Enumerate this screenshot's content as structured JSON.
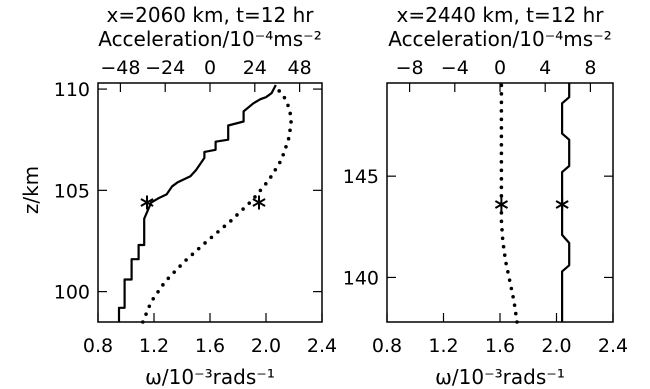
{
  "chart_data": [
    {
      "type": "line",
      "title": "x=2060 km, t=12 hr",
      "top_axis": {
        "label": "Acceleration/10⁻⁴ms⁻²",
        "range": [
          -60,
          60
        ],
        "ticks": [
          "-48",
          "-24",
          "0",
          "24",
          "48"
        ],
        "tick_values": [
          -48,
          -24,
          0,
          24,
          48
        ]
      },
      "bottom_axis": {
        "label": "ω/10⁻³rads⁻¹",
        "range": [
          0.8,
          2.4
        ],
        "ticks": [
          "0.8",
          "1.2",
          "1.6",
          "2.0",
          "2.4"
        ],
        "tick_values": [
          0.8,
          1.2,
          1.6,
          2.0,
          2.4
        ]
      },
      "y_axis": {
        "label": "z/km",
        "range": [
          98.5,
          110.3
        ],
        "ticks": [
          "100",
          "105",
          "110"
        ],
        "tick_values": [
          100,
          105,
          110
        ]
      },
      "series": [
        {
          "style": "solid",
          "axis": "bottom",
          "x": [
            0.95,
            0.95,
            0.99,
            0.99,
            1.04,
            1.04,
            1.09,
            1.09,
            1.13,
            1.13,
            1.18,
            1.23,
            1.29,
            1.33,
            1.37,
            1.46,
            1.5,
            1.56,
            1.56,
            1.64,
            1.64,
            1.73,
            1.73,
            1.84,
            1.84,
            1.91,
            1.96,
            2.0,
            2.04,
            2.07
          ],
          "y": [
            98.5,
            99.2,
            99.2,
            100.6,
            100.6,
            101.6,
            101.6,
            102.3,
            102.3,
            103.6,
            104.4,
            104.6,
            104.8,
            105.2,
            105.4,
            105.7,
            106.0,
            106.6,
            106.9,
            107.0,
            107.4,
            107.5,
            108.2,
            108.4,
            108.9,
            109.3,
            109.5,
            109.6,
            109.8,
            110.2
          ]
        },
        {
          "style": "dotted",
          "axis": "bottom",
          "x": [
            1.12,
            1.18,
            1.28,
            1.42,
            1.58,
            1.75,
            1.9,
            2.02,
            2.11,
            2.16,
            2.18,
            2.17,
            2.13,
            2.06
          ],
          "y": [
            98.5,
            99.5,
            100.5,
            101.5,
            102.5,
            103.5,
            104.5,
            105.5,
            106.5,
            107.5,
            108.3,
            109.0,
            109.6,
            110.2
          ]
        }
      ],
      "markers": [
        {
          "symbol": "asterisk",
          "x": 1.15,
          "y": 104.4
        },
        {
          "symbol": "asterisk",
          "x": 1.95,
          "y": 104.4
        }
      ]
    },
    {
      "type": "line",
      "title": "x=2440 km, t=12 hr",
      "top_axis": {
        "label": "Acceleration/10⁻⁴ms⁻²",
        "range": [
          -10,
          10
        ],
        "ticks": [
          "-8",
          "-4",
          "0",
          "4",
          "8"
        ],
        "tick_values": [
          -8,
          -4,
          0,
          4,
          8
        ]
      },
      "bottom_axis": {
        "label": "ω/10⁻³rads⁻¹",
        "range": [
          0.8,
          2.4
        ],
        "ticks": [
          "0.8",
          "1.2",
          "1.6",
          "2.0",
          "2.4"
        ],
        "tick_values": [
          0.8,
          1.2,
          1.6,
          2.0,
          2.4
        ]
      },
      "y_axis": {
        "label": "",
        "range": [
          137.8,
          149.6
        ],
        "ticks": [
          "140",
          "145"
        ],
        "tick_values": [
          140,
          145
        ]
      },
      "series": [
        {
          "style": "solid",
          "axis": "bottom",
          "x": [
            2.04,
            2.04,
            2.09,
            2.09,
            2.04,
            2.04,
            2.09,
            2.09,
            2.04,
            2.04,
            2.09,
            2.09
          ],
          "y": [
            137.8,
            140.3,
            140.6,
            141.7,
            142.1,
            145.2,
            145.5,
            146.8,
            147.1,
            148.6,
            148.9,
            149.6
          ]
        },
        {
          "style": "dotted",
          "axis": "bottom",
          "x": [
            1.72,
            1.7,
            1.67,
            1.64,
            1.62,
            1.61,
            1.61,
            1.61,
            1.61,
            1.61,
            1.61
          ],
          "y": [
            137.8,
            138.8,
            139.8,
            140.8,
            141.8,
            142.8,
            144.0,
            145.5,
            147.0,
            148.5,
            149.6
          ]
        }
      ],
      "markers": [
        {
          "symbol": "asterisk",
          "x": 1.61,
          "y": 143.6
        },
        {
          "symbol": "asterisk",
          "x": 2.04,
          "y": 143.6
        }
      ]
    }
  ]
}
